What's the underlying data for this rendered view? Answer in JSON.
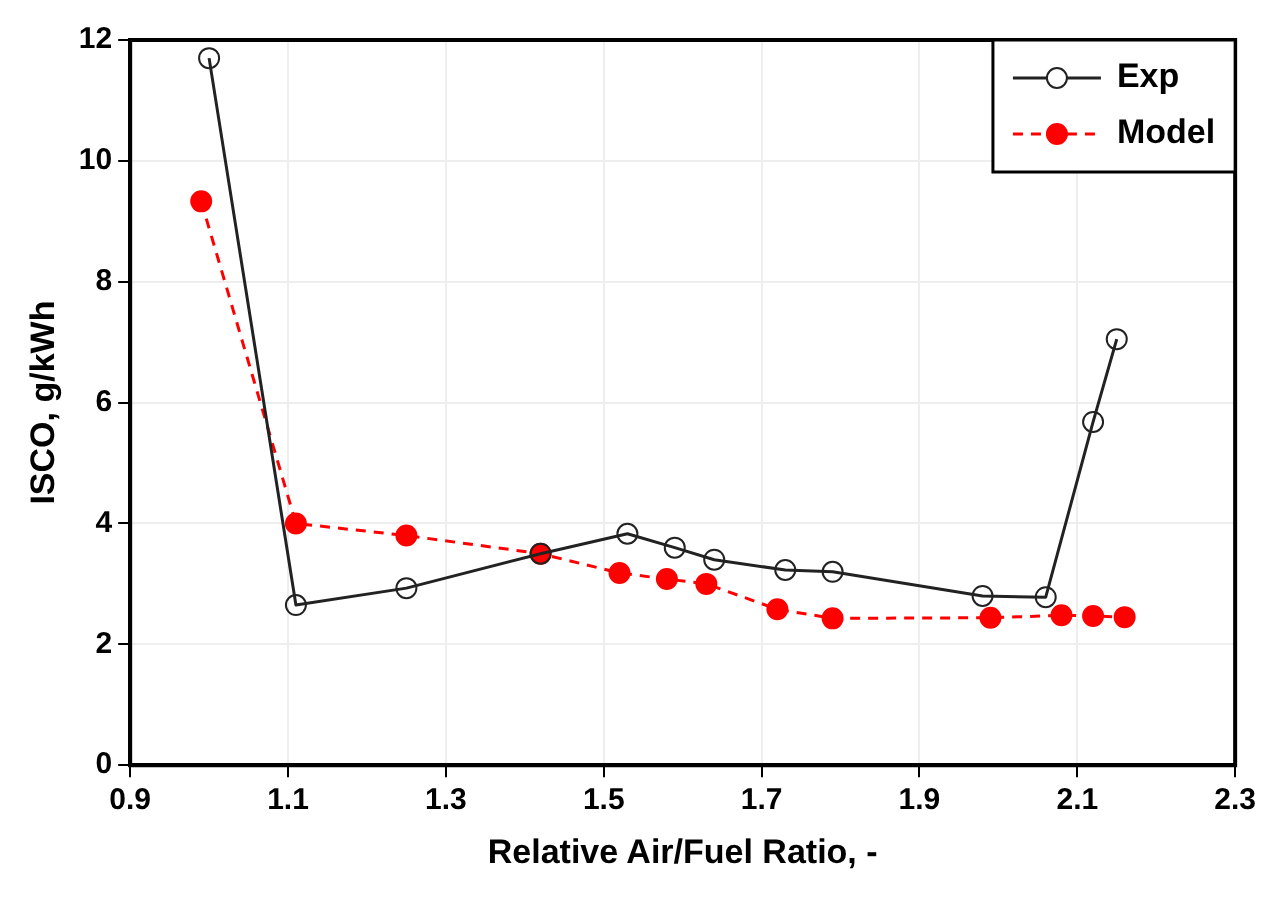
{
  "chart_data": {
    "type": "line",
    "xlabel": "Relative Air/Fuel Ratio, -",
    "ylabel": "ISCO, g/kWh",
    "xlim": [
      0.9,
      2.3
    ],
    "xticks": [
      0.9,
      1.1,
      1.3,
      1.5,
      1.7,
      1.9,
      2.1,
      2.3
    ],
    "ylim": [
      0,
      12
    ],
    "yticks": [
      0,
      2,
      4,
      6,
      8,
      10,
      12
    ],
    "grid": true,
    "legend": "top right",
    "series": [
      {
        "name": "Exp",
        "color": "#222222",
        "marker": "circle",
        "line_style": "solid",
        "x": [
          1.0,
          1.11,
          1.25,
          1.42,
          1.53,
          1.59,
          1.64,
          1.73,
          1.79,
          1.98,
          2.06,
          2.12,
          2.15
        ],
        "values": [
          11.7,
          2.65,
          2.93,
          3.5,
          3.83,
          3.6,
          3.4,
          3.23,
          3.2,
          2.8,
          2.78,
          5.68,
          7.05
        ]
      },
      {
        "name": "Model",
        "color": "#ff0000",
        "marker": "circle",
        "line_style": "dashed",
        "x": [
          0.99,
          1.11,
          1.25,
          1.42,
          1.52,
          1.58,
          1.63,
          1.72,
          1.79,
          1.99,
          2.08,
          2.12,
          2.16
        ],
        "values": [
          9.33,
          4.0,
          3.8,
          3.5,
          3.18,
          3.08,
          3.0,
          2.58,
          2.43,
          2.44,
          2.48,
          2.47,
          2.45
        ]
      }
    ]
  }
}
